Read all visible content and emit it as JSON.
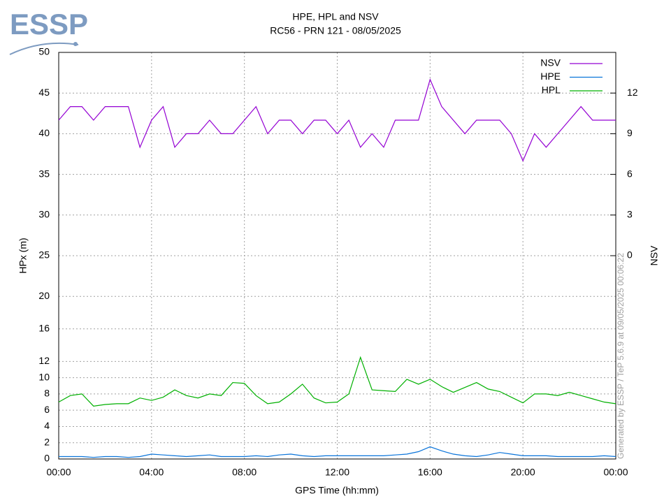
{
  "logo": "ESSP",
  "chart_data": {
    "type": "line",
    "title": "HPE, HPL and NSV",
    "subtitle": "RC56 - PRN 121 - 08/05/2025",
    "x_label": "GPS Time (hh:mm)",
    "y_label": "HPx (m)",
    "y2_label": "NSV",
    "footnote": "Generated by ESSP / TeP 5.6.9 at 09/05/2025 00:06:22",
    "x": [
      0,
      0.5,
      1,
      1.5,
      2,
      2.5,
      3,
      3.5,
      4,
      4.5,
      5,
      5.5,
      6,
      6.5,
      7,
      7.5,
      8,
      8.5,
      9,
      9.5,
      10,
      10.5,
      11,
      11.5,
      12,
      12.5,
      13,
      13.5,
      14,
      14.5,
      15,
      15.5,
      16,
      16.5,
      17,
      17.5,
      18,
      18.5,
      19,
      19.5,
      20,
      20.5,
      21,
      21.5,
      22,
      22.5,
      23,
      23.5,
      24
    ],
    "xlim": [
      0,
      24
    ],
    "xticks": [
      {
        "value": 0,
        "label": "00:00"
      },
      {
        "value": 4,
        "label": "04:00"
      },
      {
        "value": 8,
        "label": "08:00"
      },
      {
        "value": 12,
        "label": "12:00"
      },
      {
        "value": 16,
        "label": "16:00"
      },
      {
        "value": 20,
        "label": "20:00"
      },
      {
        "value": 24,
        "label": "00:00"
      }
    ],
    "ylim": [
      0,
      50
    ],
    "yticks": [
      0,
      2,
      4,
      6,
      8,
      10,
      12,
      16,
      20,
      25,
      30,
      35,
      40,
      45,
      50
    ],
    "y2lim": [
      -15,
      15
    ],
    "y2ticks": [
      0,
      3,
      6,
      9,
      12
    ],
    "grid": true,
    "legend": "top-right",
    "series": [
      {
        "name": "NSV",
        "color": "#9400d3",
        "axis": "y2",
        "values": [
          10,
          11,
          11,
          10,
          11,
          11,
          11,
          8,
          10,
          11,
          8,
          9,
          9,
          10,
          9,
          9,
          10,
          11,
          9,
          10,
          10,
          9,
          10,
          10,
          9,
          10,
          8,
          9,
          8,
          10,
          10,
          10,
          13,
          11,
          10,
          9,
          10,
          10,
          10,
          9,
          7,
          9,
          8,
          9,
          10,
          11,
          10,
          10,
          10
        ]
      },
      {
        "name": "HPE",
        "color": "#0a74da",
        "values": [
          0.3,
          0.3,
          0.3,
          0.2,
          0.3,
          0.3,
          0.2,
          0.3,
          0.6,
          0.5,
          0.4,
          0.3,
          0.4,
          0.5,
          0.3,
          0.3,
          0.3,
          0.4,
          0.3,
          0.5,
          0.6,
          0.4,
          0.3,
          0.4,
          0.4,
          0.4,
          0.4,
          0.4,
          0.4,
          0.5,
          0.6,
          0.9,
          1.5,
          1.0,
          0.6,
          0.4,
          0.3,
          0.5,
          0.8,
          0.6,
          0.4,
          0.4,
          0.4,
          0.3,
          0.3,
          0.3,
          0.3,
          0.4,
          0.3
        ]
      },
      {
        "name": "HPL",
        "color": "#00b000",
        "values": [
          7,
          7.8,
          8,
          6.5,
          6.7,
          6.8,
          6.8,
          7.5,
          7.2,
          7.6,
          8.5,
          7.8,
          7.5,
          8,
          7.8,
          9.4,
          9.3,
          7.8,
          6.8,
          7,
          8,
          9.2,
          7.5,
          6.9,
          7,
          8,
          12.5,
          8.5,
          8.4,
          8.3,
          9.8,
          9.2,
          9.8,
          8.9,
          8.2,
          8.8,
          9.4,
          8.6,
          8.3,
          7.6,
          6.9,
          8,
          8,
          7.8,
          8.2,
          7.8,
          7.4,
          7,
          6.8
        ]
      }
    ]
  }
}
